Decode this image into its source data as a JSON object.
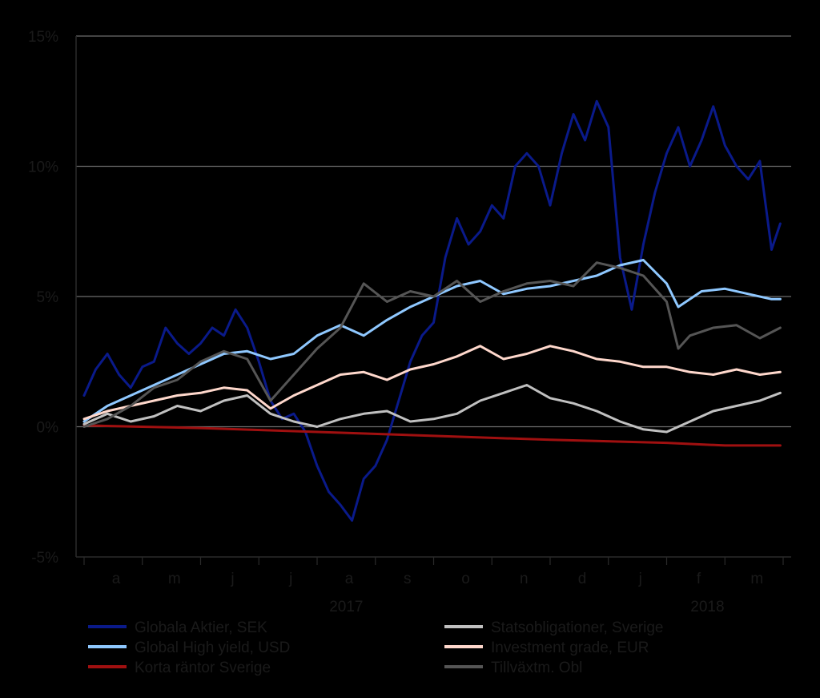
{
  "chart_data": {
    "type": "line",
    "title": "",
    "xlabel": "",
    "ylabel": "",
    "ylim": [
      -5,
      15
    ],
    "y_ticks": [
      -5,
      0,
      5,
      10,
      15
    ],
    "y_tick_labels": [
      "-5%",
      "0%",
      "5%",
      "10%",
      "15%"
    ],
    "y_gridlines": true,
    "x_range": [
      0,
      12
    ],
    "month_labels": [
      "a",
      "m",
      "j",
      "j",
      "a",
      "s",
      "o",
      "n",
      "d",
      "j",
      "f",
      "m"
    ],
    "year_labels": [
      {
        "label": "2017",
        "at": 4.5
      },
      {
        "label": "2018",
        "at": 10.7
      }
    ],
    "legend_position": "bottom",
    "series": [
      {
        "name": "Globala Aktier, SEK",
        "color": "#0a1a8a",
        "x": [
          0,
          0.2,
          0.4,
          0.6,
          0.8,
          1.0,
          1.2,
          1.4,
          1.6,
          1.8,
          2.0,
          2.2,
          2.4,
          2.6,
          2.8,
          3.0,
          3.2,
          3.4,
          3.6,
          3.8,
          4.0,
          4.2,
          4.4,
          4.6,
          4.8,
          5.0,
          5.2,
          5.4,
          5.6,
          5.8,
          6.0,
          6.2,
          6.4,
          6.6,
          6.8,
          7.0,
          7.2,
          7.4,
          7.6,
          7.8,
          8.0,
          8.2,
          8.4,
          8.6,
          8.8,
          9.0,
          9.2,
          9.4,
          9.6,
          9.8,
          10.0,
          10.2,
          10.4,
          10.6,
          10.8,
          11.0,
          11.2,
          11.4,
          11.6,
          11.8,
          11.95
        ],
        "values": [
          1.2,
          2.2,
          2.8,
          2.0,
          1.5,
          2.3,
          2.5,
          3.8,
          3.2,
          2.8,
          3.2,
          3.8,
          3.5,
          4.5,
          3.8,
          2.5,
          1.0,
          0.3,
          0.5,
          -0.2,
          -1.5,
          -2.5,
          -3.0,
          -3.6,
          -2.0,
          -1.5,
          -0.5,
          1.0,
          2.5,
          3.5,
          4.0,
          6.5,
          8.0,
          7.0,
          7.5,
          8.5,
          8.0,
          10.0,
          10.5,
          10.0,
          8.5,
          10.5,
          12.0,
          11.0,
          12.5,
          11.5,
          6.5,
          4.5,
          7.0,
          9.0,
          10.5,
          11.5,
          10.0,
          11.0,
          12.3,
          10.8,
          10.0,
          9.5,
          10.2,
          6.8,
          7.8
        ]
      },
      {
        "name": "Global High yield, USD",
        "color": "#8fc8ff",
        "x": [
          0,
          0.4,
          0.8,
          1.2,
          1.6,
          2.0,
          2.4,
          2.8,
          3.2,
          3.6,
          4.0,
          4.4,
          4.8,
          5.2,
          5.6,
          6.0,
          6.4,
          6.8,
          7.2,
          7.6,
          8.0,
          8.4,
          8.8,
          9.2,
          9.6,
          10.0,
          10.2,
          10.6,
          11.0,
          11.4,
          11.8,
          11.95
        ],
        "values": [
          0.2,
          0.8,
          1.2,
          1.6,
          2.0,
          2.4,
          2.8,
          2.9,
          2.6,
          2.8,
          3.5,
          3.9,
          3.5,
          4.1,
          4.6,
          5.0,
          5.4,
          5.6,
          5.1,
          5.3,
          5.4,
          5.6,
          5.8,
          6.2,
          6.4,
          5.5,
          4.6,
          5.2,
          5.3,
          5.1,
          4.9,
          4.9
        ]
      },
      {
        "name": "Korta räntor Sverige",
        "color": "#a01010",
        "x": [
          0,
          2,
          4,
          6,
          8,
          10,
          11,
          11.95
        ],
        "values": [
          0.05,
          -0.05,
          -0.2,
          -0.35,
          -0.5,
          -0.62,
          -0.72,
          -0.72
        ]
      },
      {
        "name": "Statsobligationer, Sverige",
        "color": "#c0c0c0",
        "x": [
          0,
          0.4,
          0.8,
          1.2,
          1.6,
          2.0,
          2.4,
          2.8,
          3.2,
          3.6,
          4.0,
          4.4,
          4.8,
          5.2,
          5.6,
          6.0,
          6.4,
          6.8,
          7.2,
          7.6,
          8.0,
          8.4,
          8.8,
          9.2,
          9.6,
          10.0,
          10.4,
          10.8,
          11.2,
          11.6,
          11.95
        ],
        "values": [
          0.1,
          0.5,
          0.2,
          0.4,
          0.8,
          0.6,
          1.0,
          1.2,
          0.5,
          0.2,
          0.0,
          0.3,
          0.5,
          0.6,
          0.2,
          0.3,
          0.5,
          1.0,
          1.3,
          1.6,
          1.1,
          0.9,
          0.6,
          0.2,
          -0.1,
          -0.2,
          0.2,
          0.6,
          0.8,
          1.0,
          1.3
        ]
      },
      {
        "name": "Investment grade, EUR",
        "color": "#ffd8cc",
        "x": [
          0,
          0.4,
          0.8,
          1.2,
          1.6,
          2.0,
          2.4,
          2.8,
          3.2,
          3.6,
          4.0,
          4.4,
          4.8,
          5.2,
          5.6,
          6.0,
          6.4,
          6.8,
          7.2,
          7.6,
          8.0,
          8.4,
          8.8,
          9.2,
          9.6,
          10.0,
          10.4,
          10.8,
          11.2,
          11.6,
          11.95
        ],
        "values": [
          0.3,
          0.6,
          0.8,
          1.0,
          1.2,
          1.3,
          1.5,
          1.4,
          0.7,
          1.2,
          1.6,
          2.0,
          2.1,
          1.8,
          2.2,
          2.4,
          2.7,
          3.1,
          2.6,
          2.8,
          3.1,
          2.9,
          2.6,
          2.5,
          2.3,
          2.3,
          2.1,
          2.0,
          2.2,
          2.0,
          2.1
        ]
      },
      {
        "name": "Tillväxtm. Obl",
        "color": "#555555",
        "x": [
          0,
          0.4,
          0.8,
          1.2,
          1.6,
          2.0,
          2.4,
          2.8,
          3.2,
          3.6,
          4.0,
          4.4,
          4.8,
          5.2,
          5.6,
          6.0,
          6.4,
          6.8,
          7.2,
          7.6,
          8.0,
          8.4,
          8.8,
          9.2,
          9.6,
          10.0,
          10.2,
          10.4,
          10.8,
          11.2,
          11.6,
          11.95
        ],
        "values": [
          0.0,
          0.3,
          0.8,
          1.5,
          1.8,
          2.5,
          2.9,
          2.6,
          1.0,
          2.0,
          3.0,
          3.8,
          5.5,
          4.8,
          5.2,
          5.0,
          5.6,
          4.8,
          5.2,
          5.5,
          5.6,
          5.4,
          6.3,
          6.1,
          5.8,
          4.8,
          3.0,
          3.5,
          3.8,
          3.9,
          3.4,
          3.8
        ]
      }
    ]
  }
}
